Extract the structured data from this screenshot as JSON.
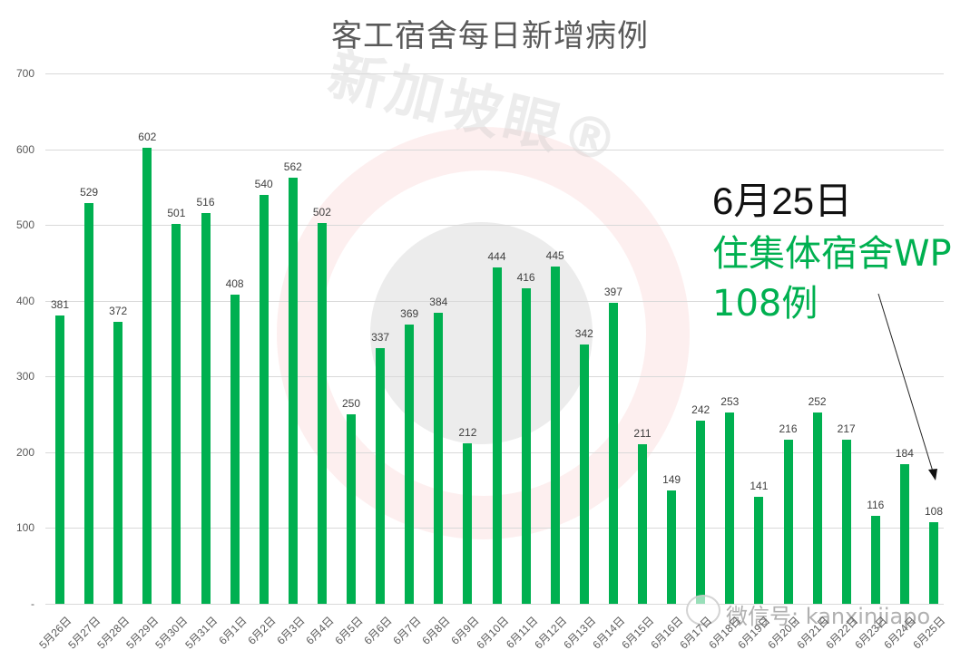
{
  "chart_data": {
    "type": "bar",
    "title": "客工宿舍每日新增病例",
    "xlabel": "",
    "ylabel": "",
    "ylim": [
      0,
      700
    ],
    "yticks": [
      "-",
      "100",
      "200",
      "300",
      "400",
      "500",
      "600",
      "700"
    ],
    "grid": true,
    "legend": "none",
    "bar_color": "#00b050",
    "categories": [
      "5月26日",
      "5月27日",
      "5月28日",
      "5月29日",
      "5月30日",
      "5月31日",
      "6月1日",
      "6月2日",
      "6月3日",
      "6月4日",
      "6月5日",
      "6月6日",
      "6月7日",
      "6月8日",
      "6月9日",
      "6月10日",
      "6月11日",
      "6月12日",
      "6月13日",
      "6月14日",
      "6月15日",
      "6月16日",
      "6月17日",
      "6月18日",
      "6月19日",
      "6月20日",
      "6月21日",
      "6月22日",
      "6月23日",
      "6月24日",
      "6月25日"
    ],
    "values": [
      381,
      529,
      372,
      602,
      501,
      516,
      408,
      540,
      562,
      502,
      250,
      337,
      369,
      384,
      212,
      444,
      416,
      445,
      342,
      397,
      211,
      149,
      242,
      253,
      141,
      216,
      252,
      217,
      116,
      184,
      108
    ],
    "annotations": [
      {
        "text": "6月25日",
        "color": "#111111"
      },
      {
        "text": "住集体宿舍WP",
        "color": "#00b050"
      },
      {
        "text": "108例",
        "color": "#00b050"
      }
    ]
  },
  "watermark": {
    "brand": "新加坡眼®",
    "wechat": "微信号: kanxinjiapo"
  }
}
